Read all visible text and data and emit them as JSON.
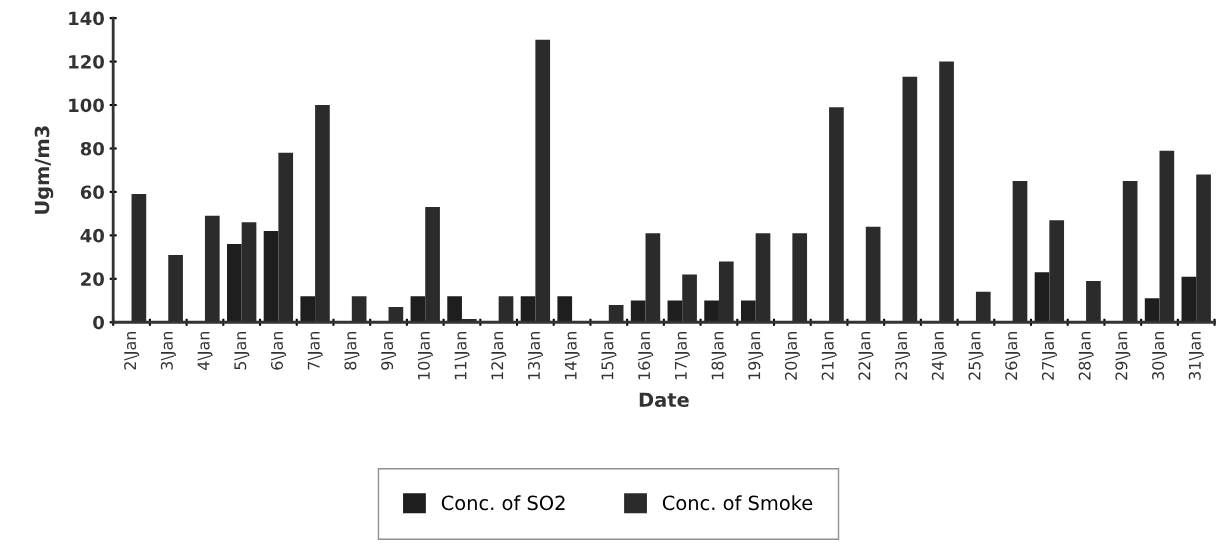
{
  "chart_data": {
    "type": "bar",
    "xlabel": "Date",
    "ylabel": "Ugm/m3",
    "categories": [
      "2\\Jan",
      "3\\Jan",
      "4\\Jan",
      "5\\Jan",
      "6\\Jan",
      "7\\Jan",
      "8\\Jan",
      "9\\Jan",
      "10\\Jan",
      "11\\Jan",
      "12\\Jan",
      "13\\Jan",
      "14\\Jan",
      "15\\Jan",
      "16\\Jan",
      "17\\Jan",
      "18\\Jan",
      "19\\Jan",
      "20\\Jan",
      "21\\Jan",
      "22\\Jan",
      "23\\Jan",
      "24\\Jan",
      "25\\Jan",
      "26\\Jan",
      "27\\Jan",
      "28\\Jan",
      "29\\Jan",
      "30\\Jan",
      "31\\Jan"
    ],
    "series": [
      {
        "name": "Conc. of SO2",
        "color": "#1e1e1e",
        "values": [
          null,
          null,
          null,
          36,
          42,
          12,
          null,
          null,
          12,
          12,
          null,
          12,
          12,
          null,
          10,
          10,
          10,
          10,
          null,
          null,
          null,
          null,
          null,
          null,
          null,
          23,
          null,
          null,
          11,
          21
        ]
      },
      {
        "name": "Conc. of Smoke",
        "color": "#2b2b2b",
        "values": [
          59,
          31,
          49,
          46,
          78,
          100,
          12,
          7,
          53,
          1.5,
          12,
          130,
          null,
          8,
          41,
          22,
          28,
          41,
          41,
          99,
          44,
          113,
          120,
          14,
          65,
          47,
          19,
          65,
          79,
          68
        ]
      }
    ],
    "ylim": [
      0,
      140
    ],
    "yticks": [
      0,
      20,
      40,
      60,
      80,
      100,
      120,
      140
    ],
    "grid": false,
    "legend": "bottom"
  }
}
